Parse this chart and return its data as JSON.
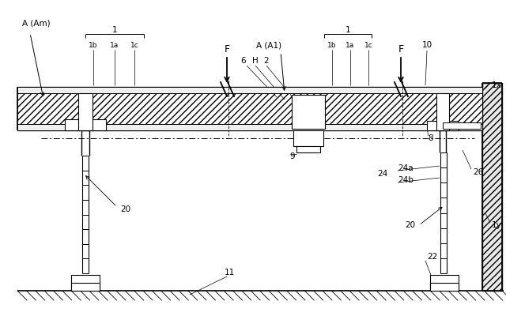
{
  "bg_color": "#ffffff",
  "lc": "#000000",
  "fig_w": 6.4,
  "fig_h": 4.0,
  "labels": {
    "A_Am": "A (Am)",
    "A_A1": "A (A1)",
    "F": "F",
    "num_1": "1",
    "num_1a": "1a",
    "num_1b": "1b",
    "num_1c": "1c",
    "num_2": "2",
    "num_6": "6",
    "num_8": "8",
    "num_9": "9",
    "num_10": "10",
    "num_11": "11",
    "num_20": "20",
    "num_22": "22",
    "num_24": "24",
    "num_24a": "24a",
    "num_24b": "24b",
    "num_26": "26",
    "num_H": "H",
    "num_1x": "1x",
    "num_1y": "1y"
  }
}
